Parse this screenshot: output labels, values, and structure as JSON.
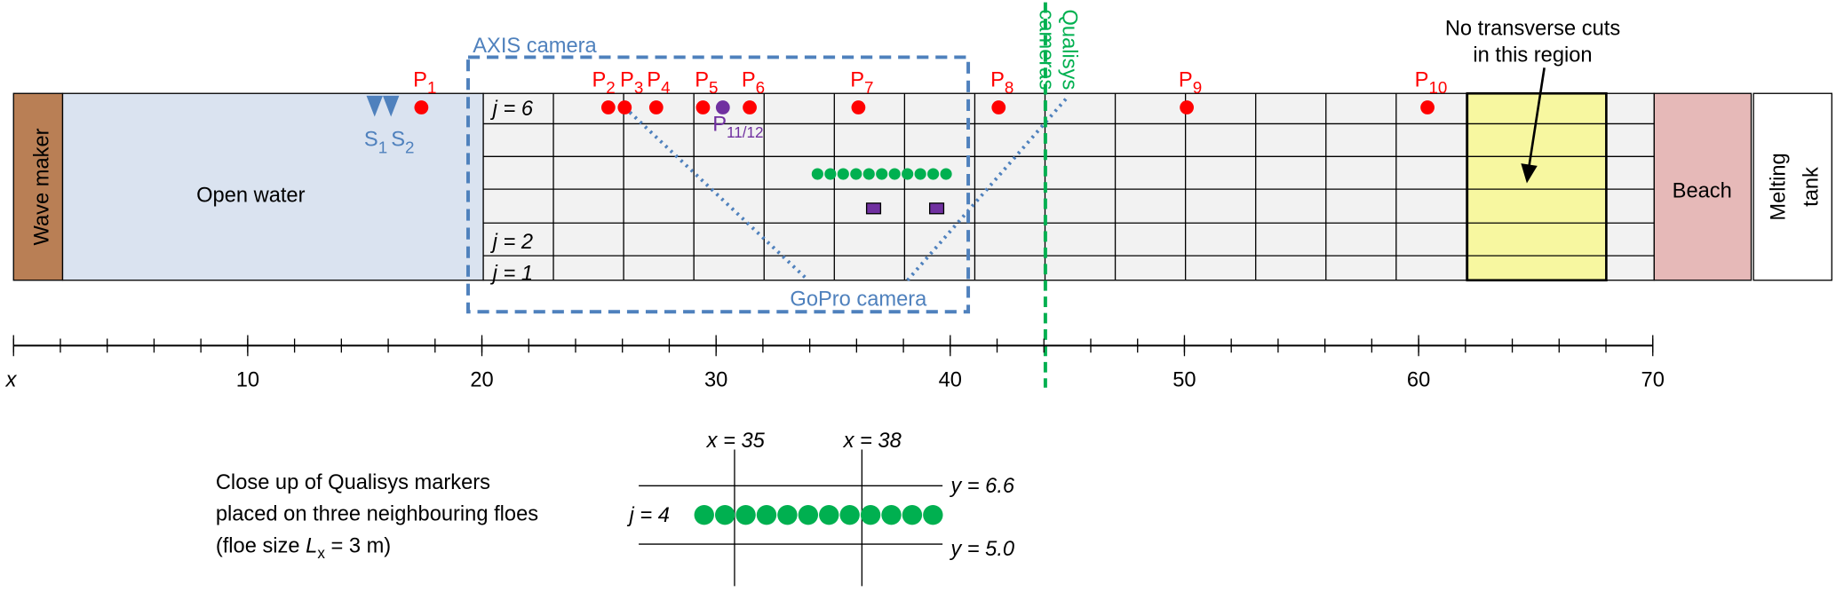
{
  "tank": {
    "wave_maker": "Wave maker",
    "open_water": "Open water",
    "beach": "Beach",
    "melting_tank": [
      "Melting",
      "tank"
    ],
    "rows": [
      "j = 6",
      "j = 2",
      "j = 1"
    ]
  },
  "probes": [
    {
      "label": "P",
      "sub": "1"
    },
    {
      "label": "P",
      "sub": "2"
    },
    {
      "label": "P",
      "sub": "3"
    },
    {
      "label": "P",
      "sub": "4"
    },
    {
      "label": "P",
      "sub": "5"
    },
    {
      "label": "P",
      "sub": "6"
    },
    {
      "label": "P",
      "sub": "7"
    },
    {
      "label": "P",
      "sub": "8"
    },
    {
      "label": "P",
      "sub": "9"
    },
    {
      "label": "P",
      "sub": "10"
    }
  ],
  "purple_probe": {
    "label": "P",
    "sub": "11/12"
  },
  "sensors": [
    {
      "label": "S",
      "sub": "1"
    },
    {
      "label": "S",
      "sub": "2"
    }
  ],
  "cameras": {
    "axis": "AXIS camera",
    "gopro": "GoPro camera",
    "qualisys": [
      "Qualisys",
      "cameras"
    ]
  },
  "note": [
    "No transverse cuts",
    "in this region"
  ],
  "axis": {
    "label": "x",
    "ticks": [
      10,
      20,
      30,
      40,
      50,
      60,
      70
    ]
  },
  "closeup": {
    "caption": [
      "Close  up of Qualisys markers",
      "placed on three neighbouring floes"
    ],
    "caption_last": {
      "pre": "(floe size ",
      "var": "L",
      "sub": "x",
      "post": " = 3 m)"
    },
    "x_labels": [
      "x = 35",
      "x = 38"
    ],
    "y_labels": [
      "y = 6.6",
      "y = 5.0"
    ],
    "row": "j = 4"
  }
}
